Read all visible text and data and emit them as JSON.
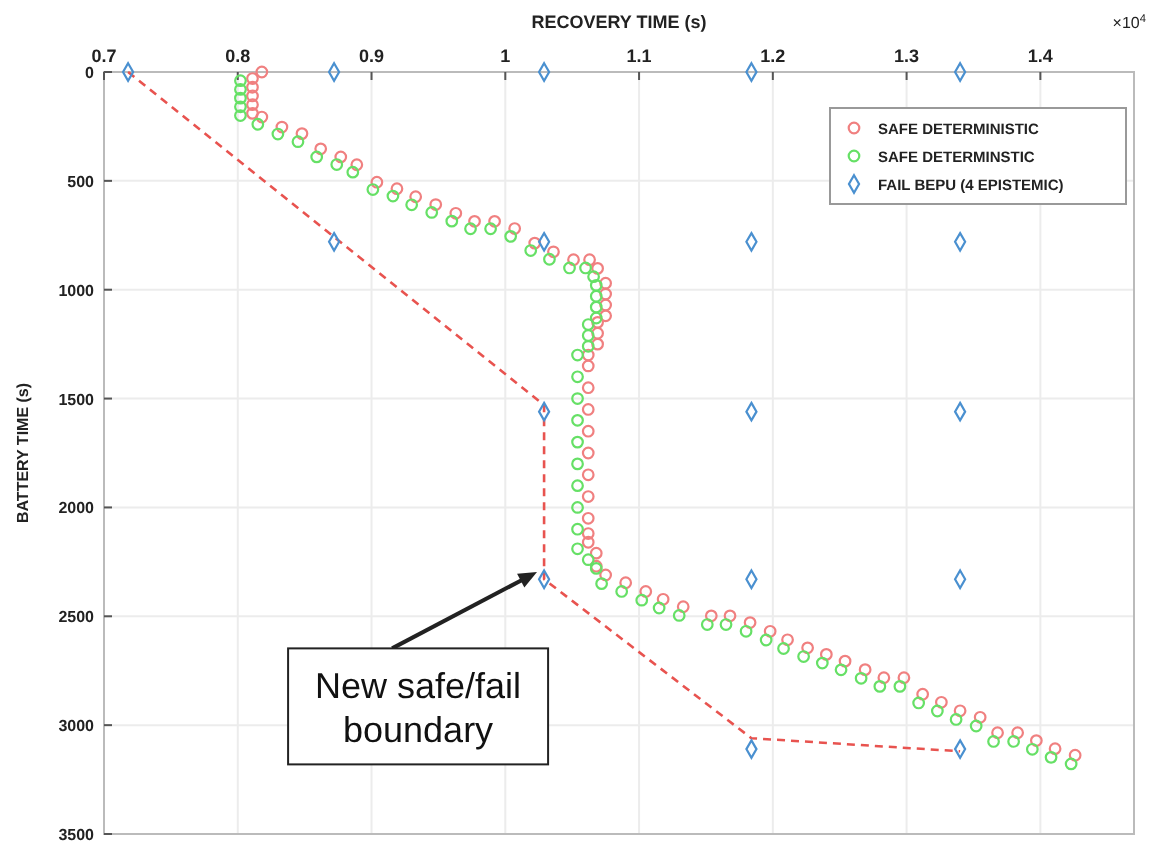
{
  "chart_data": {
    "type": "scatter",
    "xlabel": "RECOVERY TIME (s)",
    "ylabel": "BATTERY TIME (s)",
    "xlim": [
      0.7,
      1.47
    ],
    "xticks": [
      0.7,
      0.8,
      0.9,
      1,
      1.1,
      1.2,
      1.3,
      1.4
    ],
    "ylim": [
      3500,
      0
    ],
    "yticks": [
      0,
      500,
      1000,
      1500,
      2000,
      2500,
      3000,
      3500
    ],
    "grid": true,
    "legend": "top right",
    "annotations": [
      "×10$^{4}$",
      {
        "text": "New safe/fail boundary",
        "x": 1.029,
        "y": 2280
      }
    ],
    "series": [
      {
        "type": "line",
        "color": "#e8534f",
        "line_style": "dashed",
        "marker": "none",
        "x": [
          0.718,
          1.029,
          1.029,
          1.184,
          1.34
        ],
        "values": [
          0,
          1530,
          2330,
          3060,
          3120
        ]
      },
      {
        "name": "SAFE DETERMINISTIC",
        "color": "#f08080",
        "marker": "circle",
        "x": [
          0.818,
          0.811,
          0.811,
          0.811,
          0.811,
          0.811,
          0.818,
          0.833,
          0.848,
          0.862,
          0.877,
          0.889,
          0.904,
          0.919,
          0.933,
          0.948,
          0.963,
          0.977,
          0.992,
          1.007,
          1.022,
          1.036,
          1.051,
          1.063,
          1.069,
          1.075,
          1.075,
          1.075,
          1.075,
          1.069,
          1.069,
          1.069,
          1.062,
          1.062,
          1.062,
          1.062,
          1.062,
          1.062,
          1.062,
          1.062,
          1.062,
          1.062,
          1.062,
          1.068,
          1.068,
          1.075,
          1.09,
          1.105,
          1.118,
          1.133,
          1.154,
          1.168,
          1.183,
          1.198,
          1.211,
          1.226,
          1.24,
          1.254,
          1.269,
          1.283,
          1.298,
          1.312,
          1.326,
          1.34,
          1.355,
          1.368,
          1.383,
          1.397,
          1.411,
          1.426
        ],
        "values": [
          0,
          30,
          70,
          110,
          150,
          190,
          207,
          253,
          283,
          353,
          390,
          426,
          506,
          536,
          573,
          609,
          649,
          686,
          686,
          719,
          786,
          826,
          862,
          862,
          902,
          970,
          1020,
          1070,
          1120,
          1150,
          1200,
          1250,
          1300,
          1350,
          1450,
          1550,
          1650,
          1750,
          1850,
          1950,
          2050,
          2120,
          2160,
          2210,
          2270,
          2310,
          2346,
          2386,
          2422,
          2456,
          2498,
          2498,
          2529,
          2569,
          2608,
          2645,
          2675,
          2706,
          2745,
          2782,
          2782,
          2858,
          2895,
          2934,
          2964,
          3035,
          3035,
          3071,
          3108,
          3138
        ]
      },
      {
        "name": "SAFE DETERMINSTIC",
        "color": "#66e066",
        "marker": "circle",
        "x": [
          0.802,
          0.802,
          0.802,
          0.802,
          0.802,
          0.815,
          0.83,
          0.845,
          0.859,
          0.874,
          0.886,
          0.901,
          0.916,
          0.93,
          0.945,
          0.96,
          0.974,
          0.989,
          1.004,
          1.019,
          1.033,
          1.048,
          1.06,
          1.066,
          1.068,
          1.068,
          1.068,
          1.068,
          1.062,
          1.062,
          1.062,
          1.054,
          1.054,
          1.054,
          1.054,
          1.054,
          1.054,
          1.054,
          1.054,
          1.054,
          1.054,
          1.062,
          1.068,
          1.072,
          1.087,
          1.102,
          1.115,
          1.13,
          1.151,
          1.165,
          1.18,
          1.195,
          1.208,
          1.223,
          1.237,
          1.251,
          1.266,
          1.28,
          1.295,
          1.309,
          1.323,
          1.337,
          1.352,
          1.365,
          1.38,
          1.394,
          1.408,
          1.423
        ],
        "values": [
          40,
          80,
          120,
          160,
          200,
          240,
          285,
          320,
          390,
          425,
          460,
          540,
          570,
          610,
          645,
          685,
          720,
          720,
          755,
          820,
          860,
          900,
          900,
          940,
          980,
          1030,
          1080,
          1130,
          1160,
          1210,
          1260,
          1300,
          1400,
          1500,
          1600,
          1700,
          1800,
          1900,
          2000,
          2100,
          2190,
          2240,
          2280,
          2350,
          2386,
          2426,
          2462,
          2496,
          2538,
          2538,
          2569,
          2609,
          2648,
          2685,
          2715,
          2746,
          2785,
          2822,
          2822,
          2898,
          2935,
          2974,
          3004,
          3075,
          3075,
          3111,
          3148,
          3178
        ]
      },
      {
        "name": "FAIL BEPU (4 EPISTEMIC)",
        "color": "#4a90d0",
        "marker": "diamond",
        "x": [
          0.718,
          0.872,
          1.029,
          1.184,
          1.34,
          0.872,
          1.029,
          1.184,
          1.34,
          1.029,
          1.184,
          1.34,
          1.029,
          1.184,
          1.34,
          1.184,
          1.34
        ],
        "values": [
          0,
          0,
          0,
          0,
          0,
          780,
          780,
          780,
          780,
          1560,
          1560,
          1560,
          2330,
          2330,
          2330,
          3110,
          3110
        ]
      }
    ]
  }
}
